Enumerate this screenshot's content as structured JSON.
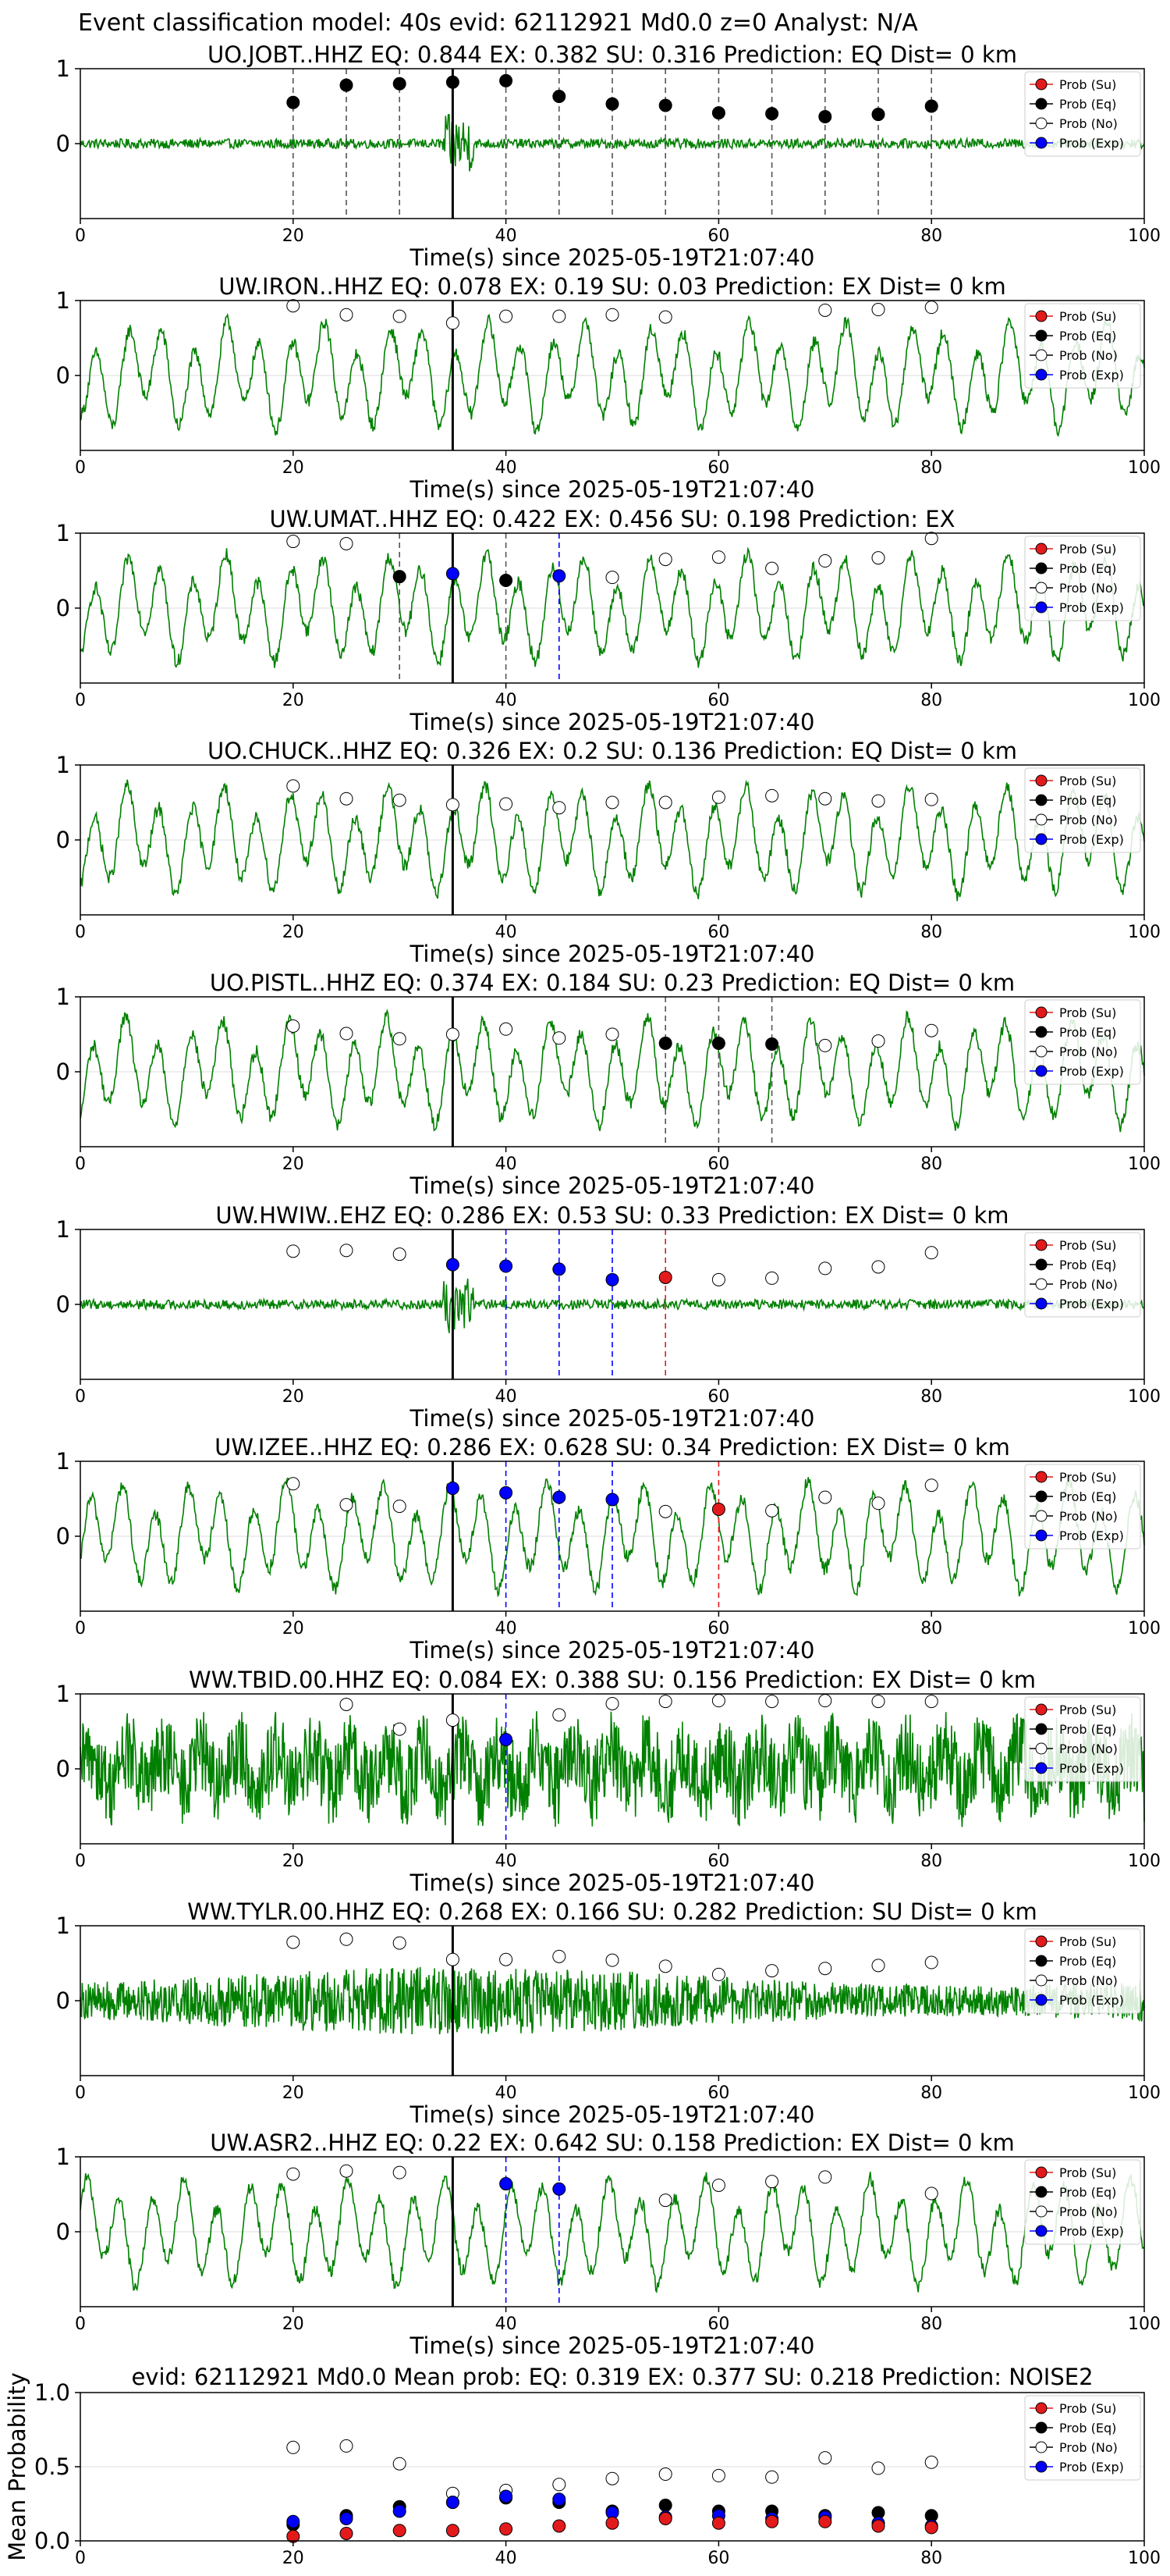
{
  "figure_title": "Event classification model: 40s evid: 62112921 Md0.0 z=0 Analyst: N/A",
  "legend_labels": [
    "Prob (Su)",
    "Prob (Eq)",
    "Prob (No)",
    "Prob (Exp)"
  ],
  "colors": {
    "waveform": "#008000",
    "su": "#e31a1c",
    "eq": "#000000",
    "no": "#ffffff",
    "exp": "#0000ff",
    "vline": "#000000"
  },
  "chart_data": [
    {
      "type": "line",
      "title": "UO.JOBT..HHZ   EQ: 0.844  EX: 0.382  SU: 0.316   Prediction: EQ    Dist= 0 km",
      "xlabel": "Time(s) since 2025-05-19T21:07:40",
      "ylabel": "",
      "xlim": [
        0,
        100
      ],
      "ylim": [
        -1,
        1
      ],
      "xticks": [
        0,
        20,
        40,
        60,
        80,
        100
      ],
      "yticks": [
        0,
        1
      ],
      "vline_x": 35,
      "legend": "top-right",
      "signal": "quiet",
      "points": [
        {
          "x": 20,
          "y": 0.55,
          "cls": "eq"
        },
        {
          "x": 25,
          "y": 0.78,
          "cls": "eq"
        },
        {
          "x": 30,
          "y": 0.8,
          "cls": "eq"
        },
        {
          "x": 35,
          "y": 0.82,
          "cls": "eq"
        },
        {
          "x": 40,
          "y": 0.84,
          "cls": "eq"
        },
        {
          "x": 45,
          "y": 0.63,
          "cls": "eq"
        },
        {
          "x": 50,
          "y": 0.53,
          "cls": "eq"
        },
        {
          "x": 55,
          "y": 0.51,
          "cls": "eq"
        },
        {
          "x": 60,
          "y": 0.41,
          "cls": "eq"
        },
        {
          "x": 65,
          "y": 0.4,
          "cls": "eq"
        },
        {
          "x": 70,
          "y": 0.36,
          "cls": "eq"
        },
        {
          "x": 75,
          "y": 0.39,
          "cls": "eq"
        },
        {
          "x": 80,
          "y": 0.5,
          "cls": "eq"
        }
      ]
    },
    {
      "type": "line",
      "title": "UW.IRON..HHZ   EQ: 0.078  EX: 0.19  SU: 0.03   Prediction: EX    Dist= 0 km",
      "xlabel": "Time(s) since 2025-05-19T21:07:40",
      "ylabel": "",
      "xlim": [
        0,
        100
      ],
      "ylim": [
        -1,
        1
      ],
      "xticks": [
        0,
        20,
        40,
        60,
        80,
        100
      ],
      "yticks": [
        0,
        1
      ],
      "vline_x": 35,
      "legend": "top-right",
      "signal": "mid",
      "points": [
        {
          "x": 20,
          "y": 0.93,
          "cls": "no"
        },
        {
          "x": 25,
          "y": 0.81,
          "cls": "no"
        },
        {
          "x": 30,
          "y": 0.79,
          "cls": "no"
        },
        {
          "x": 35,
          "y": 0.7,
          "cls": "no"
        },
        {
          "x": 40,
          "y": 0.79,
          "cls": "no"
        },
        {
          "x": 45,
          "y": 0.79,
          "cls": "no"
        },
        {
          "x": 50,
          "y": 0.81,
          "cls": "no"
        },
        {
          "x": 55,
          "y": 0.78,
          "cls": "no"
        },
        {
          "x": 70,
          "y": 0.87,
          "cls": "no"
        },
        {
          "x": 75,
          "y": 0.88,
          "cls": "no"
        },
        {
          "x": 80,
          "y": 0.91,
          "cls": "no"
        }
      ]
    },
    {
      "type": "line",
      "title": "UW.UMAT..HHZ   EQ: 0.422  EX: 0.456  SU: 0.198   Prediction: EX",
      "xlabel": "Time(s) since 2025-05-19T21:07:40",
      "ylabel": "",
      "xlim": [
        0,
        100
      ],
      "ylim": [
        -1,
        1
      ],
      "xticks": [
        0,
        20,
        40,
        60,
        80,
        100
      ],
      "yticks": [
        0,
        1
      ],
      "vline_x": 35,
      "legend": "top-right",
      "signal": "mid",
      "points": [
        {
          "x": 20,
          "y": 0.89,
          "cls": "no"
        },
        {
          "x": 25,
          "y": 0.86,
          "cls": "no"
        },
        {
          "x": 30,
          "y": 0.42,
          "cls": "eq"
        },
        {
          "x": 35,
          "y": 0.46,
          "cls": "exp"
        },
        {
          "x": 40,
          "y": 0.37,
          "cls": "eq"
        },
        {
          "x": 45,
          "y": 0.43,
          "cls": "exp"
        },
        {
          "x": 50,
          "y": 0.41,
          "cls": "no"
        },
        {
          "x": 55,
          "y": 0.65,
          "cls": "no"
        },
        {
          "x": 60,
          "y": 0.68,
          "cls": "no"
        },
        {
          "x": 65,
          "y": 0.53,
          "cls": "no"
        },
        {
          "x": 70,
          "y": 0.63,
          "cls": "no"
        },
        {
          "x": 75,
          "y": 0.67,
          "cls": "no"
        },
        {
          "x": 80,
          "y": 0.93,
          "cls": "no"
        }
      ]
    },
    {
      "type": "line",
      "title": "UO.CHUCK..HHZ   EQ: 0.326  EX: 0.2  SU: 0.136   Prediction: EQ    Dist= 0 km",
      "xlabel": "Time(s) since 2025-05-19T21:07:40",
      "ylabel": "",
      "xlim": [
        0,
        100
      ],
      "ylim": [
        -1,
        1
      ],
      "xticks": [
        0,
        20,
        40,
        60,
        80,
        100
      ],
      "yticks": [
        0,
        1
      ],
      "vline_x": 35,
      "legend": "top-right",
      "signal": "mid",
      "points": [
        {
          "x": 20,
          "y": 0.72,
          "cls": "no"
        },
        {
          "x": 25,
          "y": 0.55,
          "cls": "no"
        },
        {
          "x": 30,
          "y": 0.53,
          "cls": "no"
        },
        {
          "x": 35,
          "y": 0.47,
          "cls": "no"
        },
        {
          "x": 40,
          "y": 0.48,
          "cls": "no"
        },
        {
          "x": 45,
          "y": 0.43,
          "cls": "no"
        },
        {
          "x": 50,
          "y": 0.5,
          "cls": "no"
        },
        {
          "x": 55,
          "y": 0.5,
          "cls": "no"
        },
        {
          "x": 60,
          "y": 0.57,
          "cls": "no"
        },
        {
          "x": 65,
          "y": 0.59,
          "cls": "no"
        },
        {
          "x": 70,
          "y": 0.55,
          "cls": "no"
        },
        {
          "x": 75,
          "y": 0.52,
          "cls": "no"
        },
        {
          "x": 80,
          "y": 0.54,
          "cls": "no"
        }
      ]
    },
    {
      "type": "line",
      "title": "UO.PISTL..HHZ   EQ: 0.374  EX: 0.184  SU: 0.23   Prediction: EQ    Dist= 0 km",
      "xlabel": "Time(s) since 2025-05-19T21:07:40",
      "ylabel": "",
      "xlim": [
        0,
        100
      ],
      "ylim": [
        -1,
        1
      ],
      "xticks": [
        0,
        20,
        40,
        60,
        80,
        100
      ],
      "yticks": [
        0,
        1
      ],
      "vline_x": 35,
      "legend": "top-right",
      "signal": "mid",
      "points": [
        {
          "x": 20,
          "y": 0.61,
          "cls": "no"
        },
        {
          "x": 25,
          "y": 0.51,
          "cls": "no"
        },
        {
          "x": 30,
          "y": 0.44,
          "cls": "no"
        },
        {
          "x": 35,
          "y": 0.5,
          "cls": "no"
        },
        {
          "x": 40,
          "y": 0.57,
          "cls": "no"
        },
        {
          "x": 45,
          "y": 0.45,
          "cls": "no"
        },
        {
          "x": 50,
          "y": 0.5,
          "cls": "no"
        },
        {
          "x": 55,
          "y": 0.38,
          "cls": "eq"
        },
        {
          "x": 60,
          "y": 0.38,
          "cls": "eq"
        },
        {
          "x": 65,
          "y": 0.37,
          "cls": "eq"
        },
        {
          "x": 70,
          "y": 0.35,
          "cls": "no"
        },
        {
          "x": 75,
          "y": 0.41,
          "cls": "no"
        },
        {
          "x": 80,
          "y": 0.55,
          "cls": "no"
        }
      ]
    },
    {
      "type": "line",
      "title": "UW.HWIW..EHZ   EQ: 0.286  EX: 0.53  SU: 0.33   Prediction: EX    Dist= 0 km",
      "xlabel": "Time(s) since 2025-05-19T21:07:40",
      "ylabel": "",
      "xlim": [
        0,
        100
      ],
      "ylim": [
        -1,
        1
      ],
      "xticks": [
        0,
        20,
        40,
        60,
        80,
        100
      ],
      "yticks": [
        0,
        1
      ],
      "vline_x": 35,
      "legend": "top-right",
      "signal": "quiet",
      "points": [
        {
          "x": 20,
          "y": 0.71,
          "cls": "no"
        },
        {
          "x": 25,
          "y": 0.72,
          "cls": "no"
        },
        {
          "x": 30,
          "y": 0.67,
          "cls": "no"
        },
        {
          "x": 35,
          "y": 0.53,
          "cls": "exp"
        },
        {
          "x": 40,
          "y": 0.51,
          "cls": "exp"
        },
        {
          "x": 45,
          "y": 0.47,
          "cls": "exp"
        },
        {
          "x": 50,
          "y": 0.33,
          "cls": "exp"
        },
        {
          "x": 55,
          "y": 0.36,
          "cls": "su"
        },
        {
          "x": 60,
          "y": 0.33,
          "cls": "no"
        },
        {
          "x": 65,
          "y": 0.35,
          "cls": "no"
        },
        {
          "x": 70,
          "y": 0.48,
          "cls": "no"
        },
        {
          "x": 75,
          "y": 0.5,
          "cls": "no"
        },
        {
          "x": 80,
          "y": 0.69,
          "cls": "no"
        }
      ]
    },
    {
      "type": "line",
      "title": "UW.IZEE..HHZ   EQ: 0.286  EX: 0.628  SU: 0.34   Prediction: EX    Dist= 0 km",
      "xlabel": "Time(s) since 2025-05-19T21:07:40",
      "ylabel": "",
      "xlim": [
        0,
        100
      ],
      "ylim": [
        -1,
        1
      ],
      "xticks": [
        0,
        20,
        40,
        60,
        80,
        100
      ],
      "yticks": [
        0,
        1
      ],
      "vline_x": 35,
      "legend": "top-right",
      "signal": "mid",
      "points": [
        {
          "x": 20,
          "y": 0.7,
          "cls": "no"
        },
        {
          "x": 25,
          "y": 0.42,
          "cls": "no"
        },
        {
          "x": 30,
          "y": 0.4,
          "cls": "no"
        },
        {
          "x": 35,
          "y": 0.64,
          "cls": "exp"
        },
        {
          "x": 40,
          "y": 0.58,
          "cls": "exp"
        },
        {
          "x": 45,
          "y": 0.52,
          "cls": "exp"
        },
        {
          "x": 50,
          "y": 0.49,
          "cls": "exp"
        },
        {
          "x": 55,
          "y": 0.33,
          "cls": "no"
        },
        {
          "x": 60,
          "y": 0.36,
          "cls": "su"
        },
        {
          "x": 65,
          "y": 0.34,
          "cls": "no"
        },
        {
          "x": 70,
          "y": 0.52,
          "cls": "no"
        },
        {
          "x": 75,
          "y": 0.44,
          "cls": "no"
        },
        {
          "x": 80,
          "y": 0.68,
          "cls": "no"
        }
      ]
    },
    {
      "type": "line",
      "title": "WW.TBID.00.HHZ   EQ: 0.084  EX: 0.388  SU: 0.156   Prediction: EX    Dist= 0 km",
      "xlabel": "Time(s) since 2025-05-19T21:07:40",
      "ylabel": "",
      "xlim": [
        0,
        100
      ],
      "ylim": [
        -1,
        1
      ],
      "xticks": [
        0,
        20,
        40,
        60,
        80,
        100
      ],
      "yticks": [
        0,
        1
      ],
      "vline_x": 35,
      "legend": "top-right",
      "signal": "busy",
      "points": [
        {
          "x": 25,
          "y": 0.86,
          "cls": "no"
        },
        {
          "x": 30,
          "y": 0.53,
          "cls": "no"
        },
        {
          "x": 35,
          "y": 0.65,
          "cls": "no"
        },
        {
          "x": 40,
          "y": 0.39,
          "cls": "exp"
        },
        {
          "x": 45,
          "y": 0.72,
          "cls": "no"
        },
        {
          "x": 50,
          "y": 0.87,
          "cls": "no"
        },
        {
          "x": 55,
          "y": 0.9,
          "cls": "no"
        },
        {
          "x": 60,
          "y": 0.91,
          "cls": "no"
        },
        {
          "x": 65,
          "y": 0.9,
          "cls": "no"
        },
        {
          "x": 70,
          "y": 0.91,
          "cls": "no"
        },
        {
          "x": 75,
          "y": 0.9,
          "cls": "no"
        },
        {
          "x": 80,
          "y": 0.9,
          "cls": "no"
        }
      ]
    },
    {
      "type": "line",
      "title": "WW.TYLR.00.HHZ   EQ: 0.268  EX: 0.166  SU: 0.282   Prediction: SU    Dist= 0 km",
      "xlabel": "Time(s) since 2025-05-19T21:07:40",
      "ylabel": "",
      "xlim": [
        0,
        100
      ],
      "ylim": [
        -1,
        1
      ],
      "xticks": [
        0,
        20,
        40,
        60,
        80,
        100
      ],
      "yticks": [
        0,
        1
      ],
      "vline_x": 35,
      "legend": "top-right",
      "signal": "noise",
      "points": [
        {
          "x": 20,
          "y": 0.78,
          "cls": "no"
        },
        {
          "x": 25,
          "y": 0.82,
          "cls": "no"
        },
        {
          "x": 30,
          "y": 0.77,
          "cls": "no"
        },
        {
          "x": 35,
          "y": 0.55,
          "cls": "no"
        },
        {
          "x": 40,
          "y": 0.55,
          "cls": "no"
        },
        {
          "x": 45,
          "y": 0.59,
          "cls": "no"
        },
        {
          "x": 50,
          "y": 0.54,
          "cls": "no"
        },
        {
          "x": 55,
          "y": 0.46,
          "cls": "no"
        },
        {
          "x": 60,
          "y": 0.35,
          "cls": "no"
        },
        {
          "x": 65,
          "y": 0.4,
          "cls": "no"
        },
        {
          "x": 70,
          "y": 0.43,
          "cls": "no"
        },
        {
          "x": 75,
          "y": 0.47,
          "cls": "no"
        },
        {
          "x": 80,
          "y": 0.51,
          "cls": "no"
        }
      ]
    },
    {
      "type": "line",
      "title": "UW.ASR2..HHZ   EQ: 0.22  EX: 0.642  SU: 0.158   Prediction: EX    Dist= 0 km",
      "xlabel": "Time(s) since 2025-05-19T21:07:40",
      "ylabel": "",
      "xlim": [
        0,
        100
      ],
      "ylim": [
        -1,
        1
      ],
      "xticks": [
        0,
        20,
        40,
        60,
        80,
        100
      ],
      "yticks": [
        0,
        1
      ],
      "vline_x": 35,
      "legend": "top-right",
      "signal": "mid",
      "points": [
        {
          "x": 20,
          "y": 0.77,
          "cls": "no"
        },
        {
          "x": 25,
          "y": 0.81,
          "cls": "no"
        },
        {
          "x": 30,
          "y": 0.79,
          "cls": "no"
        },
        {
          "x": 40,
          "y": 0.64,
          "cls": "exp"
        },
        {
          "x": 45,
          "y": 0.57,
          "cls": "exp"
        },
        {
          "x": 55,
          "y": 0.42,
          "cls": "no"
        },
        {
          "x": 60,
          "y": 0.62,
          "cls": "no"
        },
        {
          "x": 65,
          "y": 0.67,
          "cls": "no"
        },
        {
          "x": 70,
          "y": 0.73,
          "cls": "no"
        },
        {
          "x": 80,
          "y": 0.51,
          "cls": "no"
        }
      ]
    },
    {
      "type": "scatter",
      "title": "evid: 62112921  Md0.0   Mean prob:   EQ: 0.319  EX: 0.377  SU: 0.218   Prediction: NOISE2",
      "xlabel": "",
      "ylabel": "Mean Probability",
      "xlim": [
        0,
        100
      ],
      "ylim": [
        0,
        1
      ],
      "xticks": [
        0,
        20,
        40,
        60,
        80,
        100
      ],
      "yticks": [
        0.0,
        0.5,
        1.0
      ],
      "legend": "top-right",
      "x": [
        20,
        25,
        30,
        35,
        40,
        45,
        50,
        55,
        60,
        65,
        70,
        75,
        80
      ],
      "series": [
        {
          "name": "Prob (No)",
          "cls": "no",
          "values": [
            0.63,
            0.64,
            0.52,
            0.32,
            0.34,
            0.38,
            0.42,
            0.45,
            0.44,
            0.43,
            0.56,
            0.49,
            0.53
          ]
        },
        {
          "name": "Prob (Eq)",
          "cls": "eq",
          "values": [
            0.11,
            0.17,
            0.23,
            0.26,
            0.29,
            0.26,
            0.2,
            0.24,
            0.2,
            0.2,
            0.17,
            0.19,
            0.17
          ]
        },
        {
          "name": "Prob (Exp)",
          "cls": "exp",
          "values": [
            0.13,
            0.15,
            0.2,
            0.26,
            0.3,
            0.28,
            0.19,
            0.16,
            0.17,
            0.15,
            0.16,
            0.12,
            0.1
          ]
        },
        {
          "name": "Prob (Su)",
          "cls": "su",
          "values": [
            0.03,
            0.05,
            0.07,
            0.07,
            0.08,
            0.1,
            0.12,
            0.15,
            0.12,
            0.13,
            0.13,
            0.1,
            0.09
          ]
        }
      ]
    }
  ]
}
